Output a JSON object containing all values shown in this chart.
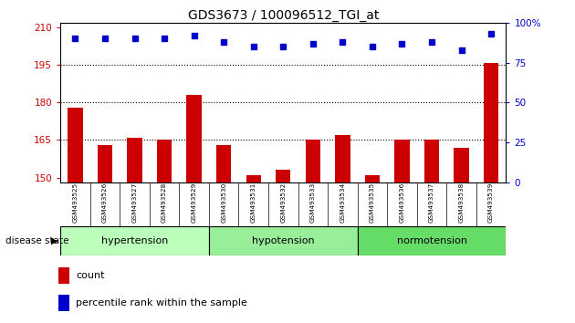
{
  "title": "GDS3673 / 100096512_TGI_at",
  "samples": [
    "GSM493525",
    "GSM493526",
    "GSM493527",
    "GSM493528",
    "GSM493529",
    "GSM493530",
    "GSM493531",
    "GSM493532",
    "GSM493533",
    "GSM493534",
    "GSM493535",
    "GSM493536",
    "GSM493537",
    "GSM493538",
    "GSM493539"
  ],
  "bar_values": [
    178,
    163,
    166,
    165,
    183,
    163,
    151,
    153,
    165,
    167,
    151,
    165,
    165,
    162,
    196
  ],
  "percentile_values": [
    90,
    90,
    90,
    90,
    92,
    88,
    85,
    85,
    87,
    88,
    85,
    87,
    88,
    83,
    93
  ],
  "bar_color": "#cc0000",
  "dot_color": "#0000cc",
  "ylim_left": [
    148,
    212
  ],
  "ylim_right": [
    0,
    100
  ],
  "yticks_left": [
    150,
    165,
    180,
    195,
    210
  ],
  "yticks_right": [
    0,
    25,
    50,
    75,
    100
  ],
  "hlines": [
    195,
    180,
    165
  ],
  "groups": [
    {
      "label": "hypertension",
      "start": 0,
      "end": 4
    },
    {
      "label": "hypotension",
      "start": 5,
      "end": 9
    },
    {
      "label": "normotension",
      "start": 10,
      "end": 14
    }
  ],
  "group_colors": [
    "#bbffbb",
    "#99ee99",
    "#66dd66"
  ],
  "legend_count_label": "count",
  "legend_pct_label": "percentile rank within the sample",
  "disease_state_label": "disease state",
  "bar_width": 0.5,
  "background_color": "#ffffff",
  "plot_bg_color": "#ffffff",
  "tick_label_bg": "#cccccc"
}
